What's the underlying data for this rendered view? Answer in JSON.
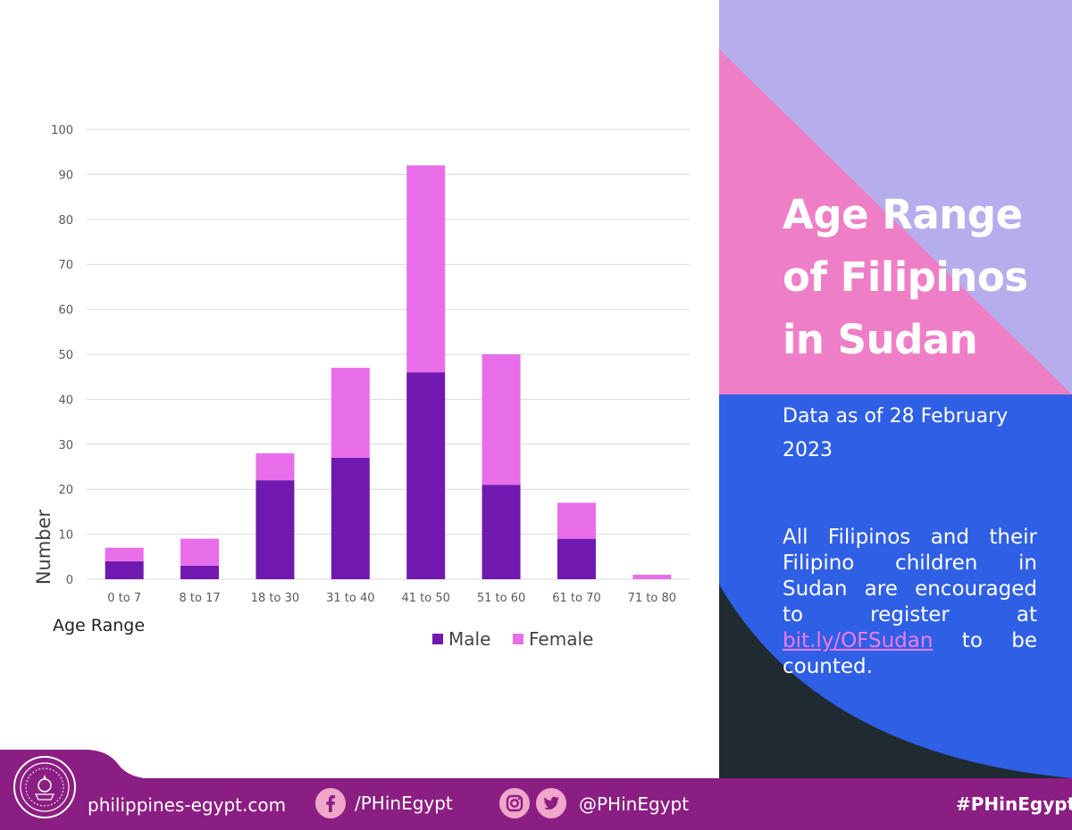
{
  "chart_data": {
    "type": "bar",
    "stacked": true,
    "categories": [
      "0 to 7",
      "8 to 17",
      "18 to 30",
      "31 to 40",
      "41 to 50",
      "51 to 60",
      "61 to 70",
      "71 to 80"
    ],
    "series": [
      {
        "name": "Male",
        "values": [
          4,
          3,
          22,
          27,
          46,
          21,
          9,
          0
        ],
        "color": "#7019b0"
      },
      {
        "name": "Female",
        "values": [
          3,
          6,
          6,
          20,
          46,
          29,
          8,
          1
        ],
        "color": "#e86ee9"
      }
    ],
    "y_ticks": [
      "0",
      "10",
      "20",
      "30",
      "40",
      "50",
      "60",
      "70",
      "80",
      "90",
      "100"
    ],
    "ylim": [
      0,
      100
    ],
    "ylabel": "Number",
    "xlabel": "Age Range",
    "grid": true,
    "legend_position": "bottom"
  },
  "panel": {
    "title_lines": [
      "Age Range",
      "of Filipinos",
      "in Sudan"
    ],
    "subtitle": "Data as of 28 February 2023",
    "message_before": "All Filipinos and their Filipino children in Sudan are encouraged to register at ",
    "message_link": "bit.ly/OFSudan",
    "message_after": " to be counted."
  },
  "footer": {
    "website": "philippines-egypt.com",
    "facebook_handle": "/PHinEgypt",
    "social_handle": "@PHinEgypt",
    "hashtag": "#PHinEgypt"
  },
  "colors": {
    "male": "#7019b0",
    "female": "#e86ee9",
    "panel_lavender": "#b6aeec",
    "panel_pink": "#ee7fc6",
    "panel_blue": "#2f5fe4",
    "panel_dark": "#1f2a31",
    "footer": "#8b1e82"
  }
}
